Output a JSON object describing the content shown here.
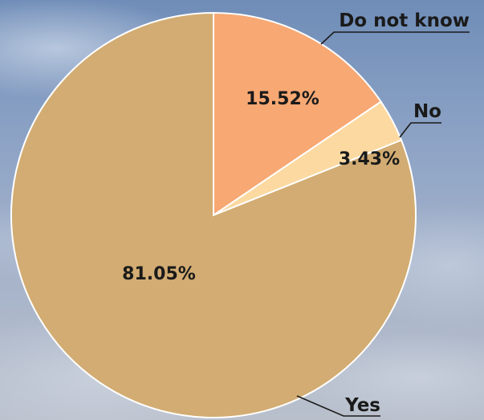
{
  "chart_data": {
    "type": "pie",
    "categories": [
      "Do not know",
      "No",
      "Yes"
    ],
    "values": [
      15.52,
      3.43,
      81.05
    ],
    "value_labels": [
      "15.52%",
      "3.43%",
      "81.05%"
    ],
    "colors": [
      "#F7A873",
      "#FBD9A0",
      "#D2AC72"
    ],
    "start_angle": "12 o'clock",
    "direction": "clockwise",
    "legend": "none",
    "grid": false
  }
}
